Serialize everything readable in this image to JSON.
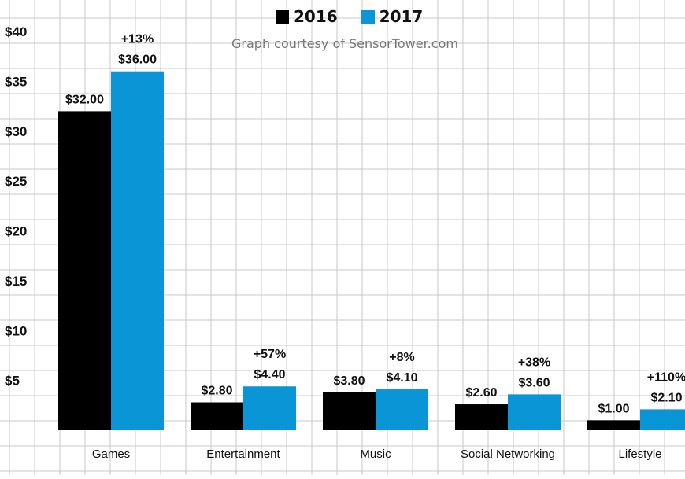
{
  "chart_data": {
    "type": "bar",
    "title": "",
    "subtitle": "Graph courtesy of SensorTower.com",
    "xlabel": "",
    "ylabel": "",
    "categories": [
      "Games",
      "Entertainment",
      "Music",
      "Social Networking",
      "Lifestyle"
    ],
    "series": [
      {
        "name": "2016",
        "values": [
          32.0,
          2.8,
          3.8,
          2.6,
          1.0
        ],
        "labels": [
          "$32.00",
          "$2.80",
          "$3.80",
          "$2.60",
          "$1.00"
        ]
      },
      {
        "name": "2017",
        "values": [
          36.0,
          4.4,
          4.1,
          3.6,
          2.1
        ],
        "labels": [
          "$36.00",
          "$4.40",
          "$4.10",
          "$3.60",
          "$2.10"
        ]
      }
    ],
    "growth_labels": [
      "+13%",
      "+57%",
      "+8%",
      "+38%",
      "+110%"
    ],
    "yticks": [
      5,
      10,
      15,
      20,
      25,
      30,
      35,
      40
    ],
    "ytick_labels": [
      "$5",
      "$10",
      "$15",
      "$20",
      "$25",
      "$30",
      "$35",
      "$40"
    ],
    "ylim": [
      0,
      40
    ],
    "grid": true,
    "legend_position": "top-center",
    "colors": {
      "2016": "#000000",
      "2017": "#0a95d6",
      "grid": "#c9c9c9"
    }
  }
}
